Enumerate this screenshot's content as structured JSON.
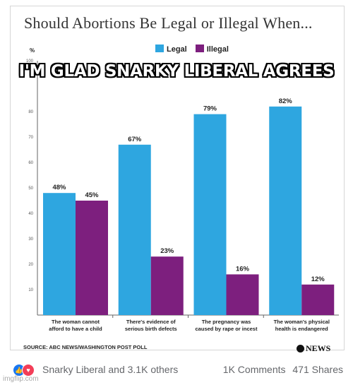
{
  "title": "Should Abortions Be Legal or Illegal When...",
  "meme_caption": "I'M GLAD SNARKY LIBERAL AGREES",
  "source": "SOURCE: ABC NEWS/WASHINGTON POST POLL",
  "logo_text": "NEWS",
  "facebook": {
    "reactors": "Snarky Liberal and 3.1K others",
    "comments": "1K Comments",
    "shares": "471 Shares"
  },
  "watermark": "imgflip.com",
  "colors": {
    "legal": "#2ea6e0",
    "illegal": "#7d1f7e"
  },
  "chart_data": {
    "type": "bar",
    "categories": [
      [
        "The woman cannot",
        "afford to have a child"
      ],
      [
        "There's evidence of",
        "serious birth defects"
      ],
      [
        "The pregnancy was",
        "caused by rape or incest"
      ],
      [
        "The woman's physical",
        "health is endangered"
      ]
    ],
    "series": [
      {
        "name": "Legal",
        "values": [
          48,
          67,
          79,
          82
        ]
      },
      {
        "name": "Illegal",
        "values": [
          45,
          23,
          16,
          12
        ]
      }
    ],
    "value_suffix": "%",
    "ylabel": "%",
    "ylim": [
      0,
      100
    ],
    "yticks": [
      10,
      20,
      30,
      40,
      50,
      60,
      70,
      80,
      100
    ],
    "legend_position": "top-center",
    "grid": false
  }
}
